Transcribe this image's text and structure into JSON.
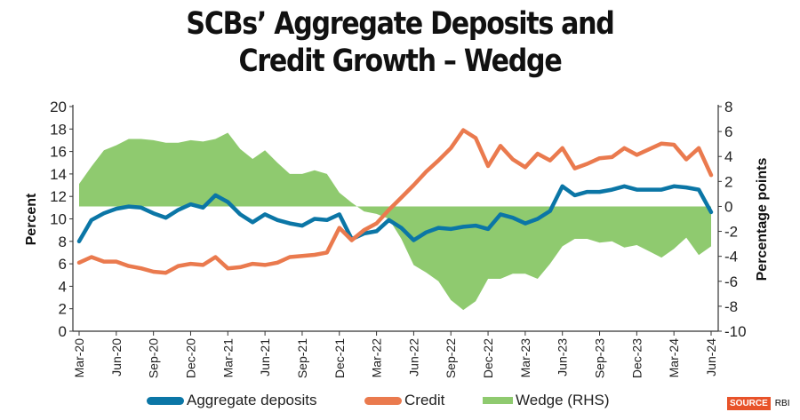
{
  "chart_data": {
    "type": "line",
    "title_lines": [
      "SCBs’ Aggregate Deposits and",
      "Credit Growth – Wedge"
    ],
    "ylabel": "Percent",
    "y2label": "Percentage points",
    "ylim": [
      0,
      20
    ],
    "y2lim": [
      -10,
      8
    ],
    "yticks": [
      0,
      2,
      4,
      6,
      8,
      10,
      12,
      14,
      16,
      18,
      20
    ],
    "y2ticks": [
      -10,
      -8,
      -6,
      -4,
      -2,
      0,
      2,
      4,
      6,
      8
    ],
    "xtick_labels": [
      "Mar-20",
      "Jun-20",
      "Sep-20",
      "Dec-20",
      "Mar-21",
      "Jun-21",
      "Sep-21",
      "Dec-21",
      "Mar-22",
      "Jun-22",
      "Sep-22",
      "Dec-22",
      "Mar-23",
      "Jun-23",
      "Sep-23",
      "Dec-23",
      "Mar-24",
      "Jun-24"
    ],
    "x_start": "Mar-20",
    "x_end": "Jun-24",
    "frequency": "monthly",
    "series": [
      {
        "name": "Aggregate deposits",
        "axis": "left",
        "kind": "line",
        "color": "#0b76a6",
        "values": [
          8.0,
          9.9,
          10.5,
          10.9,
          11.1,
          11.0,
          10.5,
          10.1,
          10.8,
          11.3,
          11.0,
          12.1,
          11.5,
          10.4,
          9.7,
          10.4,
          9.9,
          9.6,
          9.4,
          10.0,
          9.9,
          10.4,
          8.2,
          8.7,
          8.9,
          9.9,
          9.2,
          8.1,
          8.8,
          9.2,
          9.1,
          9.3,
          9.4,
          9.1,
          10.4,
          10.1,
          9.6,
          10.0,
          10.7,
          12.9,
          12.1,
          12.4,
          12.4,
          12.6,
          12.9,
          12.6,
          12.6,
          12.6,
          12.9,
          12.8,
          12.6,
          10.6
        ]
      },
      {
        "name": "Credit",
        "axis": "left",
        "kind": "line",
        "color": "#ea7a4e",
        "values": [
          6.1,
          6.6,
          6.2,
          6.2,
          5.8,
          5.6,
          5.3,
          5.2,
          5.8,
          6.0,
          5.9,
          6.6,
          5.6,
          5.7,
          6.0,
          5.9,
          6.1,
          6.6,
          6.7,
          6.8,
          7.0,
          9.2,
          8.1,
          9.0,
          9.6,
          10.8,
          11.9,
          13.0,
          14.2,
          15.2,
          16.3,
          17.9,
          17.2,
          14.7,
          16.5,
          15.3,
          14.6,
          15.8,
          15.2,
          16.3,
          14.5,
          14.9,
          15.4,
          15.5,
          16.3,
          15.7,
          16.2,
          16.7,
          16.6,
          15.3,
          16.3,
          13.9
        ]
      },
      {
        "name": "Wedge (RHS)",
        "axis": "right",
        "kind": "area",
        "color": "#8fca6f",
        "values": [
          1.8,
          3.2,
          4.5,
          4.9,
          5.4,
          5.4,
          5.3,
          5.1,
          5.1,
          5.3,
          5.2,
          5.4,
          5.9,
          4.6,
          3.8,
          4.5,
          3.5,
          2.6,
          2.6,
          2.9,
          2.6,
          1.1,
          0.3,
          -0.4,
          -0.6,
          -1.0,
          -2.6,
          -4.7,
          -5.3,
          -6.0,
          -7.5,
          -8.3,
          -7.6,
          -5.8,
          -5.8,
          -5.4,
          -5.4,
          -5.8,
          -4.6,
          -3.2,
          -2.6,
          -2.6,
          -2.9,
          -2.8,
          -3.3,
          -3.1,
          -3.6,
          -4.1,
          -3.4,
          -2.5,
          -3.9,
          -3.2
        ]
      }
    ],
    "legend_position": "bottom"
  },
  "source": {
    "badge": "SOURCE",
    "text": "RBI"
  }
}
